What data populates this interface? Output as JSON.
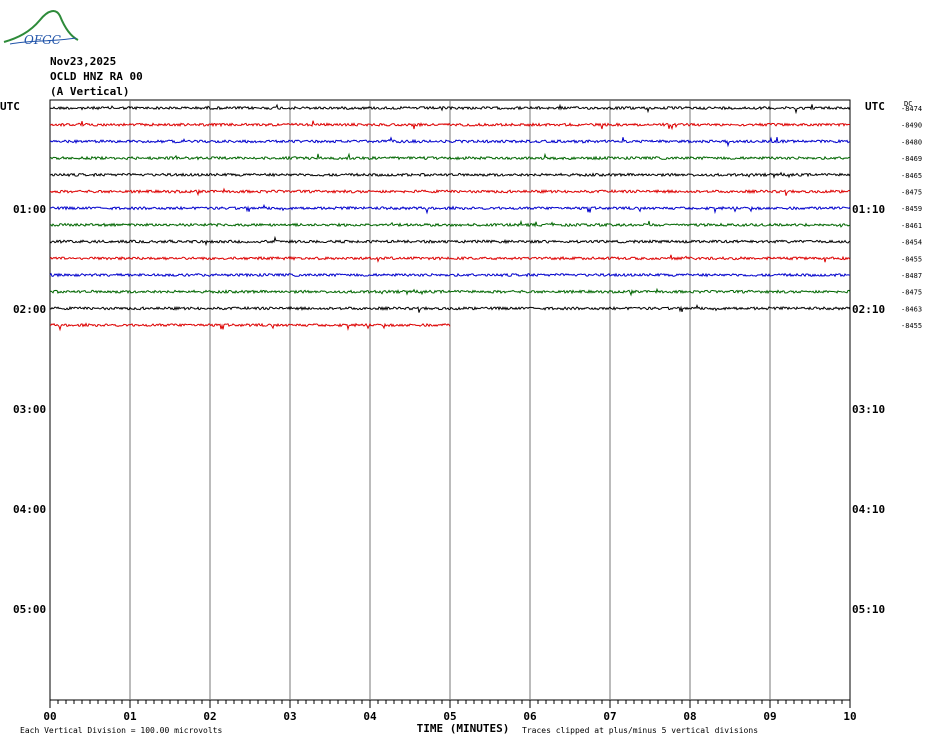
{
  "header": {
    "logo_text": "OFGC",
    "date": "Nov23,2025",
    "station": "OCLD HNZ RA 00",
    "component": "(A Vertical)"
  },
  "chart_data": {
    "type": "line",
    "title": "Nov23,2025",
    "xlabel": "TIME (MINUTES)",
    "xlim": [
      0,
      10
    ],
    "x_ticks": [
      "00",
      "01",
      "02",
      "03",
      "04",
      "05",
      "06",
      "07",
      "08",
      "09",
      "10"
    ],
    "utc_label_left": "UTC",
    "utc_label_right": "UTC",
    "left_time_labels": [
      "01:00",
      "02:00",
      "03:00",
      "04:00",
      "05:00"
    ],
    "right_time_labels": [
      "01:10",
      "02:10",
      "03:10",
      "04:10",
      "05:10"
    ],
    "dc_header": "DC",
    "traces": [
      {
        "dc": "-8474",
        "color": "#000000",
        "end_minute": 10
      },
      {
        "dc": "-8490",
        "color": "#dd0000",
        "end_minute": 10
      },
      {
        "dc": "-8480",
        "color": "#0000cc",
        "end_minute": 10
      },
      {
        "dc": "-8469",
        "color": "#006600",
        "end_minute": 10
      },
      {
        "dc": "-8465",
        "color": "#000000",
        "end_minute": 10
      },
      {
        "dc": "-8475",
        "color": "#dd0000",
        "end_minute": 10
      },
      {
        "dc": "-8459",
        "color": "#0000cc",
        "end_minute": 10
      },
      {
        "dc": "-8461",
        "color": "#006600",
        "end_minute": 10
      },
      {
        "dc": "-8454",
        "color": "#000000",
        "end_minute": 10
      },
      {
        "dc": "-8455",
        "color": "#dd0000",
        "end_minute": 10
      },
      {
        "dc": "-8487",
        "color": "#0000cc",
        "end_minute": 10
      },
      {
        "dc": "-8475",
        "color": "#006600",
        "end_minute": 10
      },
      {
        "dc": "-8463",
        "color": "#000000",
        "end_minute": 10
      },
      {
        "dc": "-8455",
        "color": "#dd0000",
        "end_minute": 5
      }
    ],
    "footer_left": "Each Vertical Division =  100.00 microvolts",
    "footer_right": "Traces clipped at plus/minus 5 vertical divisions",
    "grid": true
  }
}
